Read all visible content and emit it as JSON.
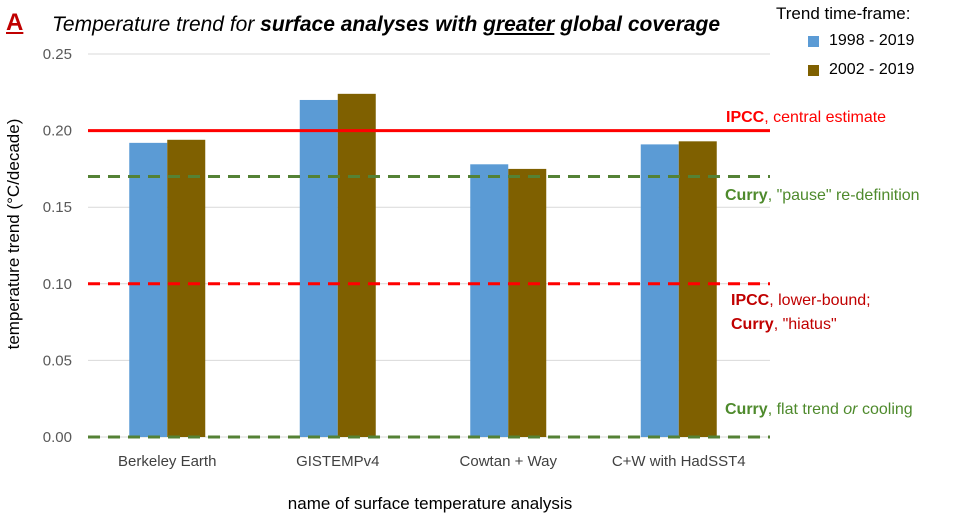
{
  "panel_letter": "A",
  "title": {
    "part1": "Temperature trend for ",
    "part2": "surface analyses with ",
    "part3": "greater",
    "part4": " global coverage"
  },
  "legend": {
    "title": "Trend time-frame:",
    "items": [
      {
        "label": "1998 - 2019",
        "color": "#5b9bd5"
      },
      {
        "label": "2002 - 2019",
        "color": "#7f6000"
      }
    ]
  },
  "annotations": {
    "ipcc_central": {
      "bold": "IPCC",
      "rest": ", central estimate",
      "color": "#ff0000"
    },
    "curry_pause": {
      "bold": "Curry",
      "rest": ", \"pause\" re-definition",
      "color": "#548235"
    },
    "ipcc_lower": {
      "bold": "IPCC",
      "rest": ", lower-bound;"
    },
    "curry_hiatus": {
      "bold": "Curry",
      "rest": ", \"hiatus\""
    },
    "curry_flat": {
      "bold": "Curry",
      "rest1": ", flat trend ",
      "italic": "or",
      "rest2": " cooling"
    }
  },
  "chart_data": {
    "type": "bar",
    "title": "Temperature trend for surface analyses with greater global coverage",
    "xlabel": "name of surface temperature analysis",
    "ylabel": "temperature trend (°C/decade)",
    "ylim": [
      0,
      0.25
    ],
    "yticks": [
      "0.00",
      "0.05",
      "0.10",
      "0.15",
      "0.20",
      "0.25"
    ],
    "grid": true,
    "legend_position": "top-right",
    "categories": [
      "Berkeley Earth",
      "GISTEMPv4",
      "Cowtan + Way",
      "C+W with HadSST4"
    ],
    "series": [
      {
        "name": "1998 - 2019",
        "color": "#5b9bd5",
        "values": [
          0.192,
          0.22,
          0.178,
          0.191
        ]
      },
      {
        "name": "2002 - 2019",
        "color": "#7f6000",
        "values": [
          0.194,
          0.224,
          0.175,
          0.193
        ]
      }
    ],
    "reference_lines": [
      {
        "y": 0.2,
        "color": "#ff0000",
        "style": "solid"
      },
      {
        "y": 0.17,
        "color": "#548235",
        "style": "dashed"
      },
      {
        "y": 0.1,
        "color": "#ff0000",
        "style": "dashed"
      },
      {
        "y": 0.0,
        "color": "#548235",
        "style": "dashed"
      }
    ]
  }
}
